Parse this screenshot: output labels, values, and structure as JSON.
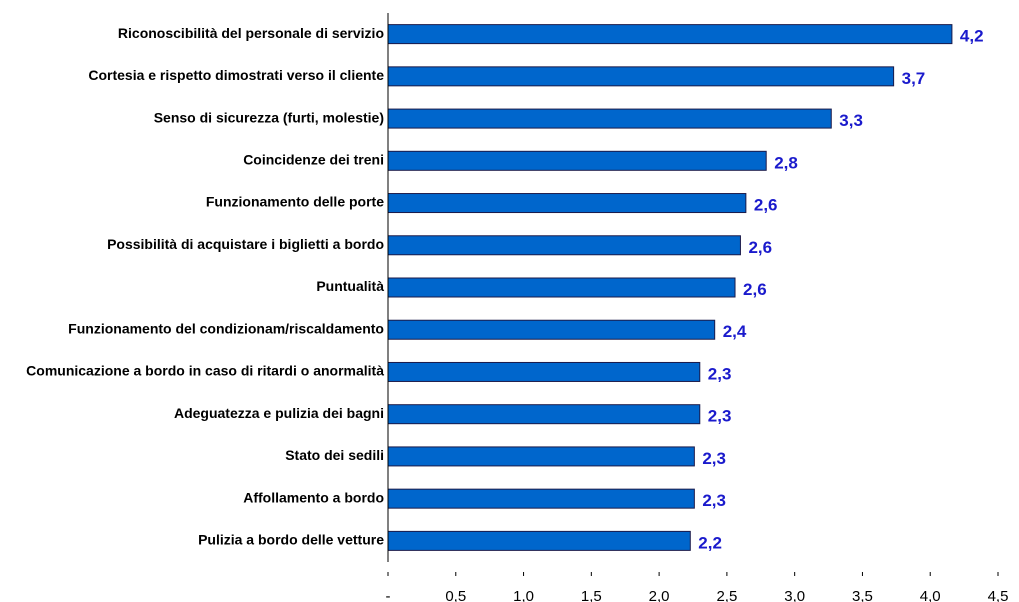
{
  "chart_data": {
    "type": "barh",
    "categories": [
      "Riconoscibilità del personale di servizio",
      "Cortesia e rispetto dimostrati verso il cliente",
      "Senso di sicurezza (furti, molestie)",
      "Coincidenze dei treni",
      "Funzionamento delle porte",
      "Possibilità di acquistare i biglietti a bordo",
      "Puntualità",
      "Funzionamento del condizionam/riscaldamento",
      "Comunicazione a bordo in caso di ritardi o anormalità",
      "Adeguatezza e pulizia dei bagni",
      "Stato dei sedili",
      "Affollamento a bordo",
      "Pulizia a bordo delle vetture"
    ],
    "values": [
      4.16,
      3.73,
      3.27,
      2.79,
      2.64,
      2.6,
      2.56,
      2.41,
      2.3,
      2.3,
      2.26,
      2.26,
      2.23
    ],
    "value_labels": [
      "4,2",
      "3,7",
      "3,3",
      "2,8",
      "2,6",
      "2,6",
      "2,6",
      "2,4",
      "2,3",
      "2,3",
      "2,3",
      "2,3",
      "2,2"
    ],
    "color": "#0066cc",
    "xlim": [
      0,
      4.5
    ],
    "xticks": [
      {
        "value": 0,
        "label": "-"
      },
      {
        "value": 0.5,
        "label": "0,5"
      },
      {
        "value": 1,
        "label": "1,0"
      },
      {
        "value": 1.5,
        "label": "1,5"
      },
      {
        "value": 2,
        "label": "2,0"
      },
      {
        "value": 2.5,
        "label": "2,5"
      },
      {
        "value": 3,
        "label": "3,0"
      },
      {
        "value": 3.5,
        "label": "3,5"
      },
      {
        "value": 4,
        "label": "4,0"
      },
      {
        "value": 4.5,
        "label": "4,5"
      }
    ]
  }
}
